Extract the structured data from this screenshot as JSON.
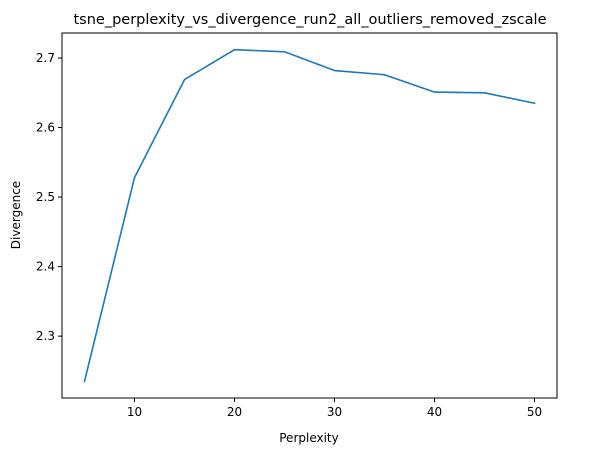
{
  "chart_data": {
    "type": "line",
    "title": "tsne_perplexity_vs_divergence_run2_all_outliers_removed_zscale",
    "xlabel": "Perplexity",
    "ylabel": "Divergence",
    "x": [
      5,
      10,
      15,
      20,
      25,
      30,
      35,
      40,
      45,
      50
    ],
    "series": [
      {
        "values": [
          2.235,
          2.528,
          2.669,
          2.712,
          2.709,
          2.682,
          2.676,
          2.651,
          2.65,
          2.635
        ],
        "color": "#1f77b4"
      }
    ],
    "xlim": [
      2.75,
      52.25
    ],
    "ylim": [
      2.211,
      2.736
    ],
    "xticks": [
      10,
      20,
      30,
      40,
      50
    ],
    "xtick_labels": [
      "10",
      "20",
      "30",
      "40",
      "50"
    ],
    "yticks": [
      2.3,
      2.4,
      2.5,
      2.6,
      2.7
    ],
    "ytick_labels": [
      "2.3",
      "2.4",
      "2.5",
      "2.6",
      "2.7"
    ],
    "grid": false,
    "legend": "none"
  }
}
